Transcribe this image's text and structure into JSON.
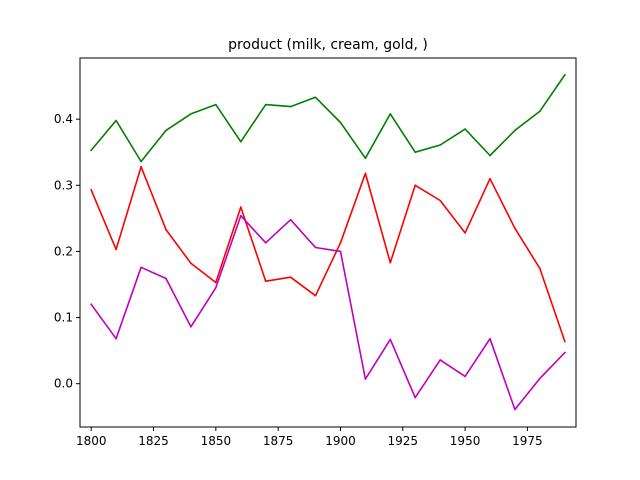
{
  "chart_data": {
    "type": "line",
    "title": "product (milk, cream, gold, )",
    "xlabel": "",
    "ylabel": "",
    "xlim": [
      1795.5,
      1994.5
    ],
    "ylim": [
      -0.0655,
      0.4925
    ],
    "grid": false,
    "x": [
      1800,
      1810,
      1820,
      1830,
      1840,
      1850,
      1860,
      1870,
      1880,
      1890,
      1900,
      1910,
      1920,
      1930,
      1940,
      1950,
      1960,
      1970,
      1980,
      1990
    ],
    "x_ticks": [
      1800,
      1825,
      1850,
      1875,
      1900,
      1925,
      1950,
      1975
    ],
    "x_tick_labels": [
      "1800",
      "1825",
      "1850",
      "1875",
      "1900",
      "1925",
      "1950",
      "1975"
    ],
    "y_ticks": [
      0.0,
      0.1,
      0.2,
      0.3,
      0.4
    ],
    "y_tick_labels": [
      "0.0",
      "0.1",
      "0.2",
      "0.3",
      "0.4"
    ],
    "series": [
      {
        "color": "#008000",
        "values": [
          0.353,
          0.398,
          0.336,
          0.383,
          0.408,
          0.422,
          0.366,
          0.422,
          0.419,
          0.433,
          0.395,
          0.341,
          0.408,
          0.35,
          0.361,
          0.385,
          0.345,
          0.383,
          0.412,
          0.467
        ]
      },
      {
        "color": "#ff0000",
        "values": [
          0.293,
          0.203,
          0.328,
          0.233,
          0.182,
          0.153,
          0.267,
          0.155,
          0.161,
          0.133,
          0.213,
          0.318,
          0.183,
          0.3,
          0.277,
          0.228,
          0.31,
          0.235,
          0.174,
          0.064
        ]
      },
      {
        "color": "#bf00bf",
        "values": [
          0.12,
          0.068,
          0.176,
          0.159,
          0.086,
          0.145,
          0.254,
          0.213,
          0.248,
          0.206,
          0.2,
          0.007,
          0.067,
          -0.021,
          0.036,
          0.011,
          0.068,
          -0.039,
          0.008,
          0.047
        ]
      }
    ]
  }
}
